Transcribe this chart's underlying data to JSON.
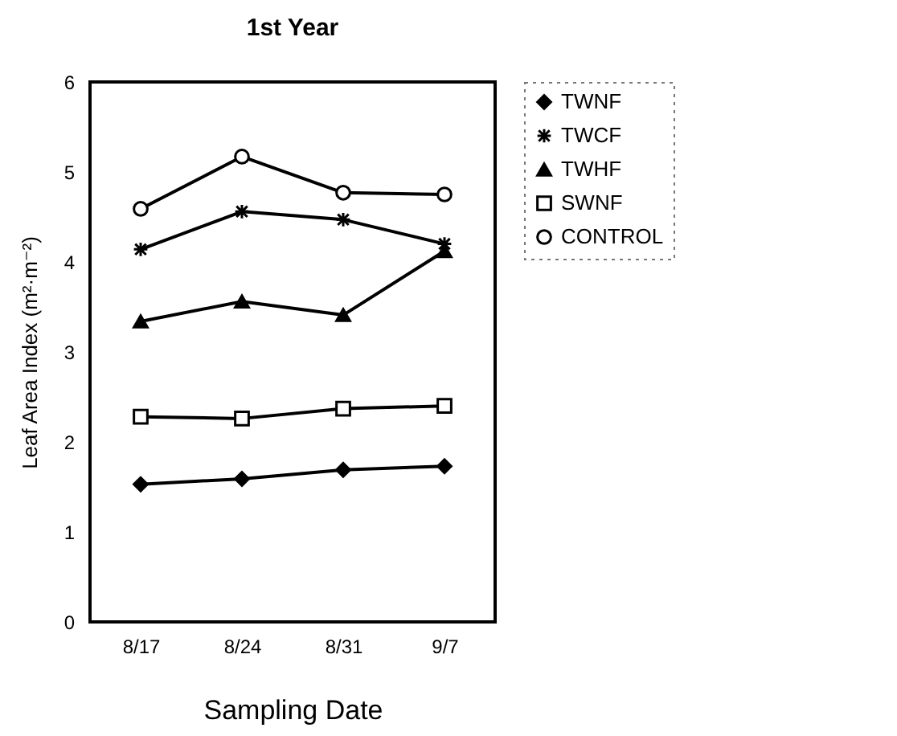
{
  "chart_data": {
    "type": "line",
    "title": "1st Year",
    "xlabel": "Sampling Date",
    "ylabel": "Leaf Area Index (m²·m⁻²)",
    "categories": [
      "8/17",
      "8/24",
      "8/31",
      "9/7"
    ],
    "series": [
      {
        "name": "TWNF",
        "color": "#000000",
        "marker": "diamond",
        "values": [
          1.53,
          1.59,
          1.69,
          1.73
        ]
      },
      {
        "name": "TWCF",
        "color": "#000000",
        "marker": "cross",
        "values": [
          4.14,
          4.56,
          4.47,
          4.2
        ]
      },
      {
        "name": "TWHF",
        "color": "#000000",
        "marker": "triangle",
        "values": [
          3.34,
          3.56,
          3.41,
          4.12
        ]
      },
      {
        "name": "SWNF",
        "color": "#000000",
        "marker": "square",
        "values": [
          2.28,
          2.26,
          2.37,
          2.4
        ]
      },
      {
        "name": "CONTROL",
        "color": "#000000",
        "marker": "circle",
        "values": [
          4.59,
          5.17,
          4.77,
          4.75
        ]
      }
    ],
    "ylim": [
      0,
      6
    ],
    "yticks": [
      0,
      1,
      2,
      3,
      4,
      5,
      6
    ],
    "legend": "right",
    "line_style": "solid"
  }
}
